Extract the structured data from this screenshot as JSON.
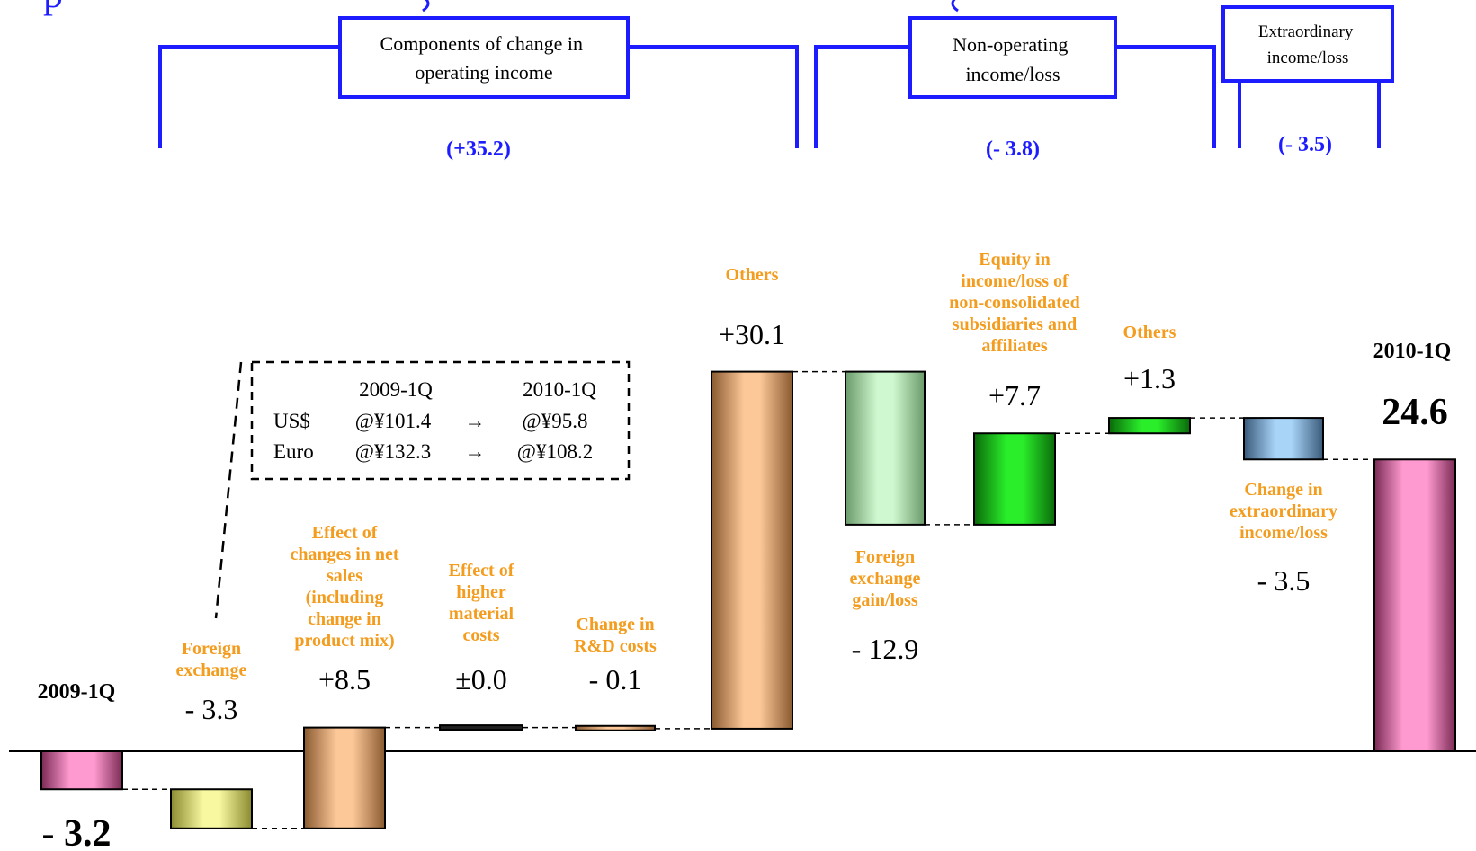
{
  "groups": [
    {
      "label_lines": [
        "Components of change in",
        "operating income"
      ],
      "value": "(+35.2)"
    },
    {
      "label_lines": [
        "Non-operating",
        "income/loss"
      ],
      "value": "(- 3.8)"
    },
    {
      "label_lines": [
        "Extraordinary",
        "income/loss"
      ],
      "value": "(- 3.5)"
    }
  ],
  "fx_box": {
    "header": [
      "",
      "2009-1Q",
      "",
      "2010-1Q"
    ],
    "rows": [
      [
        "US$",
        "@¥101.4",
        "→",
        "@¥95.8"
      ],
      [
        "Euro",
        "@¥132.3",
        "→",
        "@¥108.2"
      ]
    ]
  },
  "chart_data": {
    "type": "bar",
    "subtype": "waterfall",
    "start": {
      "label": "2009-1Q",
      "value": -3.2,
      "value_text": "- 3.2"
    },
    "end": {
      "label": "2010-1Q",
      "value": 24.6,
      "value_text": "24.6"
    },
    "steps": [
      {
        "label_lines": [
          "Foreign",
          "exchange"
        ],
        "delta": -3.3,
        "value_text": "- 3.3",
        "color": "#f2f08a"
      },
      {
        "label_lines": [
          "Effect of",
          "changes in net",
          "sales",
          "(including",
          "change in",
          "product mix)"
        ],
        "delta": 8.5,
        "value_text": "+8.5",
        "color": "#f5c08a"
      },
      {
        "label_lines": [
          "Effect of",
          "higher",
          "material",
          "costs"
        ],
        "delta": 0.0,
        "value_text": "±0.0",
        "color": "#333333"
      },
      {
        "label_lines": [
          "Change in",
          "R&D costs"
        ],
        "delta": -0.1,
        "value_text": "- 0.1",
        "color": "#f5c08a"
      },
      {
        "label_lines": [
          "Others"
        ],
        "delta": 30.1,
        "value_text": "+30.1",
        "color": "#f5c08a"
      },
      {
        "label_lines": [
          "Foreign",
          "exchange",
          "gain/loss"
        ],
        "delta": -12.9,
        "value_text": "- 12.9",
        "color": "#c2f0c2"
      },
      {
        "label_lines": [
          "Equity in",
          "income/loss of",
          "non-consolidated",
          "subsidiaries and",
          "affiliates"
        ],
        "delta": 7.7,
        "value_text": "+7.7",
        "color": "#22dd22"
      },
      {
        "label_lines": [
          "Others"
        ],
        "delta": 1.3,
        "value_text": "+1.3",
        "color": "#22dd22"
      },
      {
        "label_lines": [
          "Change in",
          "extraordinary",
          "income/loss"
        ],
        "delta": -3.5,
        "value_text": "- 3.5",
        "color": "#9ac8f0"
      }
    ],
    "colors": {
      "start": "#ff88c8",
      "end": "#ff88c8",
      "category_text": "#f39c1e",
      "group": "#1c1cff"
    }
  }
}
